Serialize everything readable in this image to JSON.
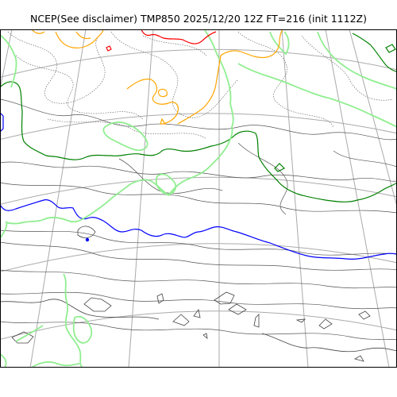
{
  "title": "NCEP(See disclaimer) TMP850 2025/12/20 12Z FT=216 (init 1112Z)",
  "colors": {
    "graticule": "#aaaaaa",
    "coastline": "#444444",
    "isotherm_fine": "#555555",
    "isotherm_0C": "#0000ff",
    "isotherm_6C": "#008000",
    "isotherm_9C": "#90ee90",
    "isotherm_12C": "#ffa500",
    "isotherm_15C": "#ff0000"
  }
}
